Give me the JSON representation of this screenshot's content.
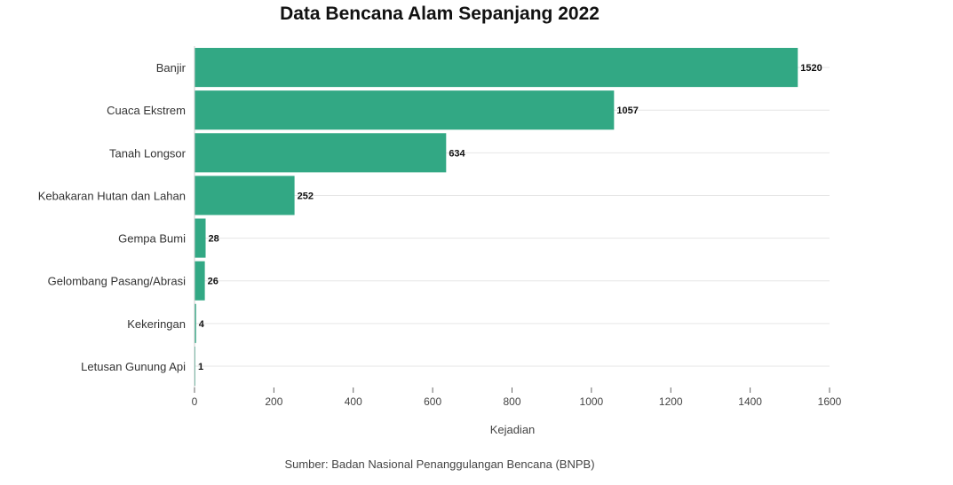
{
  "chart_data": {
    "type": "bar",
    "orientation": "horizontal",
    "title": "Data Bencana Alam Sepanjang 2022",
    "xlabel": "Kejadian",
    "ylabel": "",
    "xlim": [
      0,
      1600
    ],
    "xticks": [
      "0",
      "200",
      "400",
      "600",
      "800",
      "1000",
      "1200",
      "1400",
      "1600"
    ],
    "categories": [
      "Banjir",
      "Cuaca Ekstrem",
      "Tanah Longsor",
      "Kebakaran Hutan dan Lahan",
      "Gempa Bumi",
      "Gelombang Pasang/Abrasi",
      "Kekeringan",
      "Letusan Gunung Api"
    ],
    "values": [
      1520,
      1057,
      634,
      252,
      28,
      26,
      4,
      1
    ],
    "bar_color": "#32a884",
    "grid": "horizontal lines only",
    "source": "Sumber: Badan Nasional Penanggulangan Bencana (BNPB)"
  }
}
